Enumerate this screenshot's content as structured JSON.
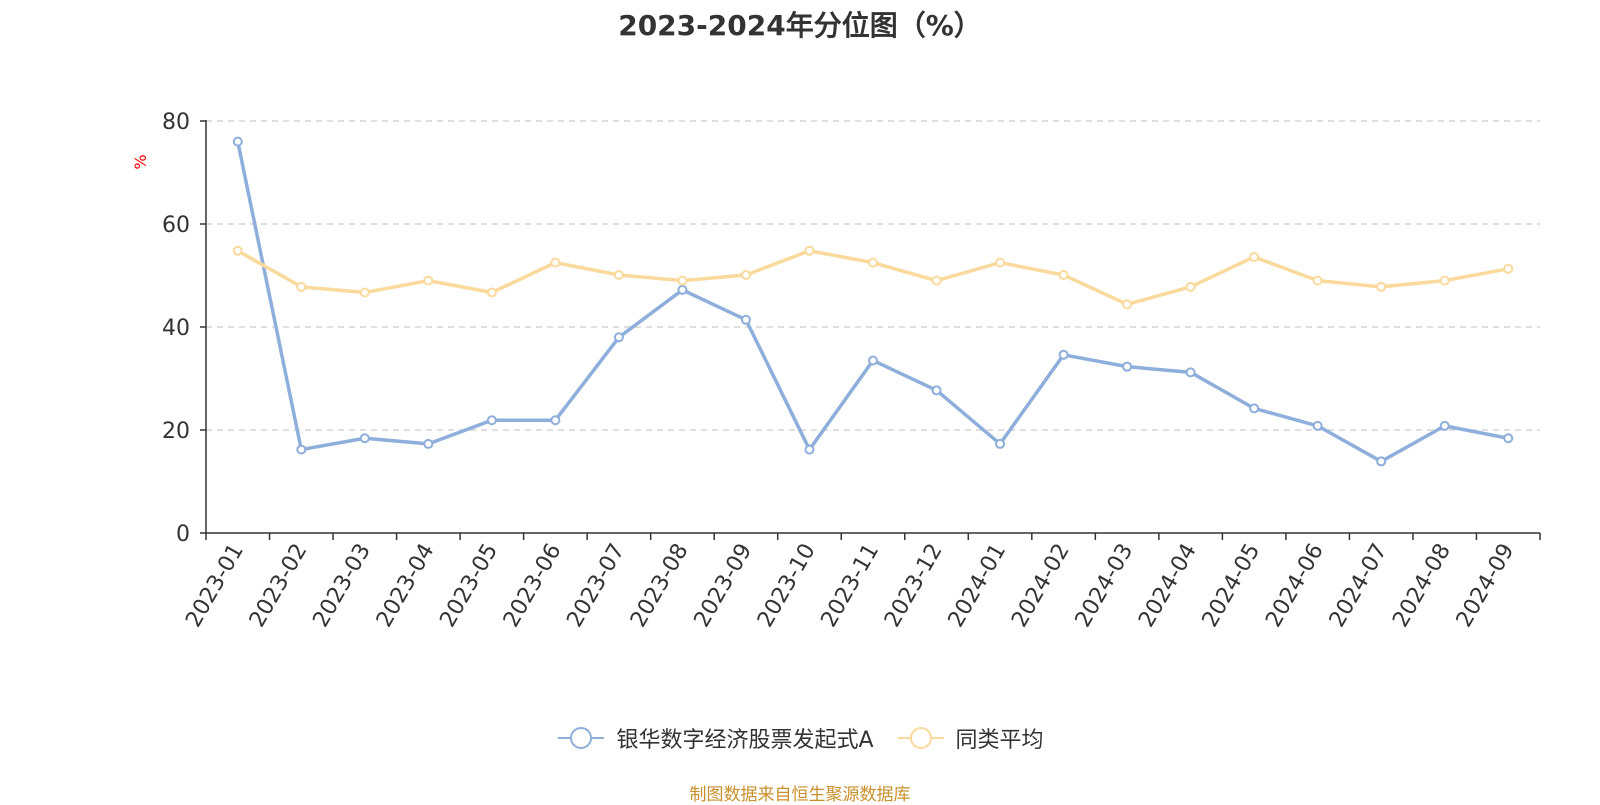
{
  "chart_data": {
    "type": "line",
    "title": "2023-2024年分位图（%）",
    "ylabel": "%",
    "xlabel": "",
    "ylim": [
      0,
      80
    ],
    "yticks": [
      0,
      20,
      40,
      60,
      80
    ],
    "grid": "horizontal-dashed",
    "legend_position": "bottom",
    "categories": [
      "2023-01",
      "2023-02",
      "2023-03",
      "2023-04",
      "2023-05",
      "2023-06",
      "2023-07",
      "2023-08",
      "2023-09",
      "2023-10",
      "2023-11",
      "2023-12",
      "2024-01",
      "2024-02",
      "2024-03",
      "2024-04",
      "2024-05",
      "2024-06",
      "2024-07",
      "2024-08",
      "2024-09"
    ],
    "series": [
      {
        "name": "银华数字经济股票发起式A",
        "color": "#8eaedb",
        "values": [
          76,
          16.2,
          18.4,
          17.3,
          21.9,
          21.9,
          38,
          47.2,
          41.4,
          16.2,
          33.5,
          27.7,
          17.3,
          34.6,
          32.3,
          31.2,
          24.2,
          20.8,
          13.9,
          20.8,
          18.4
        ]
      },
      {
        "name": "同类平均",
        "color": "#fad99c",
        "values": [
          54.8,
          47.8,
          46.7,
          49,
          46.7,
          52.5,
          50.1,
          49,
          50.1,
          54.8,
          52.5,
          49,
          52.5,
          50.1,
          44.4,
          47.8,
          53.6,
          49,
          47.8,
          49,
          51.3
        ]
      }
    ]
  },
  "source_note": "制图数据来自恒生聚源数据库"
}
